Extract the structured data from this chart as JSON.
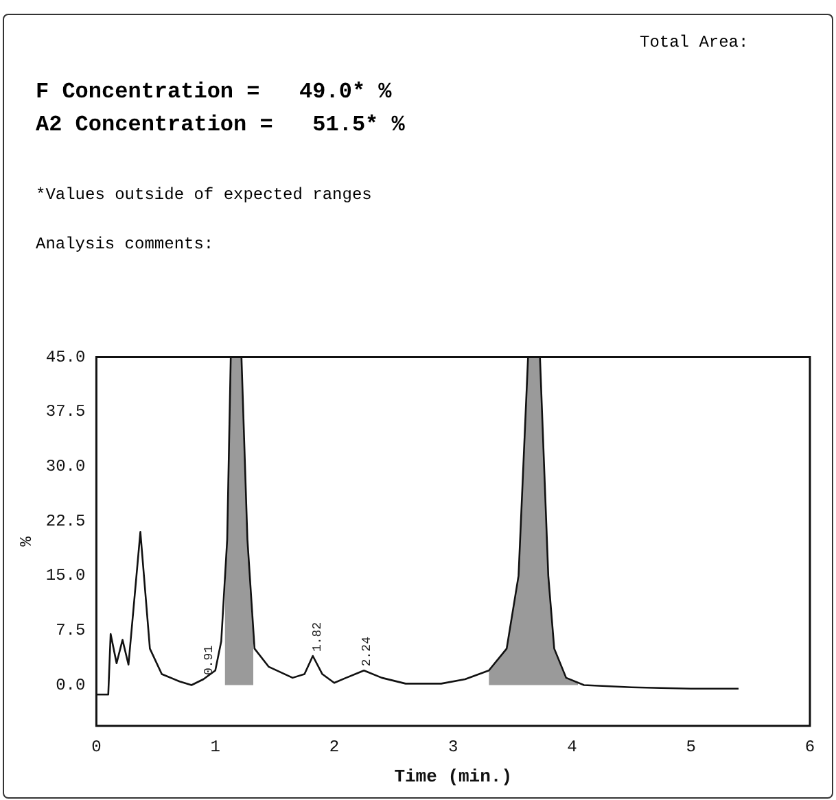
{
  "chart_data": {
    "type": "line",
    "title": "F Concentration =   49.0* %",
    "subtitle": "A2 Concentration =   51.5* %",
    "xlabel": "Time (min.)",
    "ylabel": "%",
    "annotations": [
      "Total Area:",
      "*Values outside of expected ranges",
      "Analysis comments:",
      {
        "text": "0.91",
        "x": 0.91,
        "y": 0.8
      },
      {
        "text": "1.82",
        "x": 1.82,
        "y": 4
      },
      {
        "text": "2.24",
        "x": 2.24,
        "y": 2
      }
    ],
    "series": [
      {
        "type": "area",
        "color": "#9a9a9a",
        "x": [
          1.08,
          1.1,
          1.13,
          1.22,
          1.27,
          1.32
        ],
        "values": [
          12,
          20,
          45,
          45,
          20,
          6
        ]
      },
      {
        "type": "area",
        "color": "#9a9a9a",
        "x": [
          3.3,
          3.45,
          3.55,
          3.63,
          3.73,
          3.8,
          3.85,
          3.95,
          4.05
        ],
        "values": [
          2,
          5,
          15,
          45,
          45,
          15,
          5,
          1,
          0.3
        ]
      },
      {
        "type": "line",
        "color": "#111111",
        "x": [
          0,
          0.1,
          0.12,
          0.17,
          0.22,
          0.27,
          0.37,
          0.45,
          0.55,
          0.7,
          0.8,
          0.9,
          1.0,
          1.05,
          1.1,
          1.13,
          1.22,
          1.27,
          1.33,
          1.45,
          1.65,
          1.75,
          1.82,
          1.9,
          2.0,
          2.1,
          2.25,
          2.4,
          2.6,
          2.9,
          3.1,
          3.3,
          3.45,
          3.55,
          3.63,
          3.73,
          3.8,
          3.85,
          3.95,
          4.1,
          4.5,
          5.0,
          5.4
        ],
        "values": [
          -1.3,
          -1.3,
          7,
          3,
          6.2,
          2.8,
          21,
          5,
          1.5,
          0.5,
          0,
          0.8,
          2,
          6,
          20,
          45,
          45,
          20,
          5,
          2.5,
          1,
          1.5,
          4,
          1.5,
          0.3,
          1,
          2,
          1,
          0.2,
          0.2,
          0.8,
          2,
          5,
          15,
          45,
          45,
          15,
          5,
          1,
          0,
          -0.3,
          -0.5,
          -0.5
        ]
      }
    ],
    "xlim": [
      0,
      6
    ],
    "xticks": [
      0,
      1,
      2,
      3,
      4,
      5,
      6
    ],
    "ylim": [
      -5.6,
      45
    ],
    "yticks": [
      {
        "value": 0,
        "label": "0.0"
      },
      {
        "value": 7.5,
        "label": "7.5"
      },
      {
        "value": 15,
        "label": "15.0"
      },
      {
        "value": 22.5,
        "label": "22.5"
      },
      {
        "value": 30,
        "label": "30.0"
      },
      {
        "value": 37.5,
        "label": "37.5"
      },
      {
        "value": 45,
        "label": "45.0"
      }
    ],
    "grid": false,
    "legend": false
  }
}
